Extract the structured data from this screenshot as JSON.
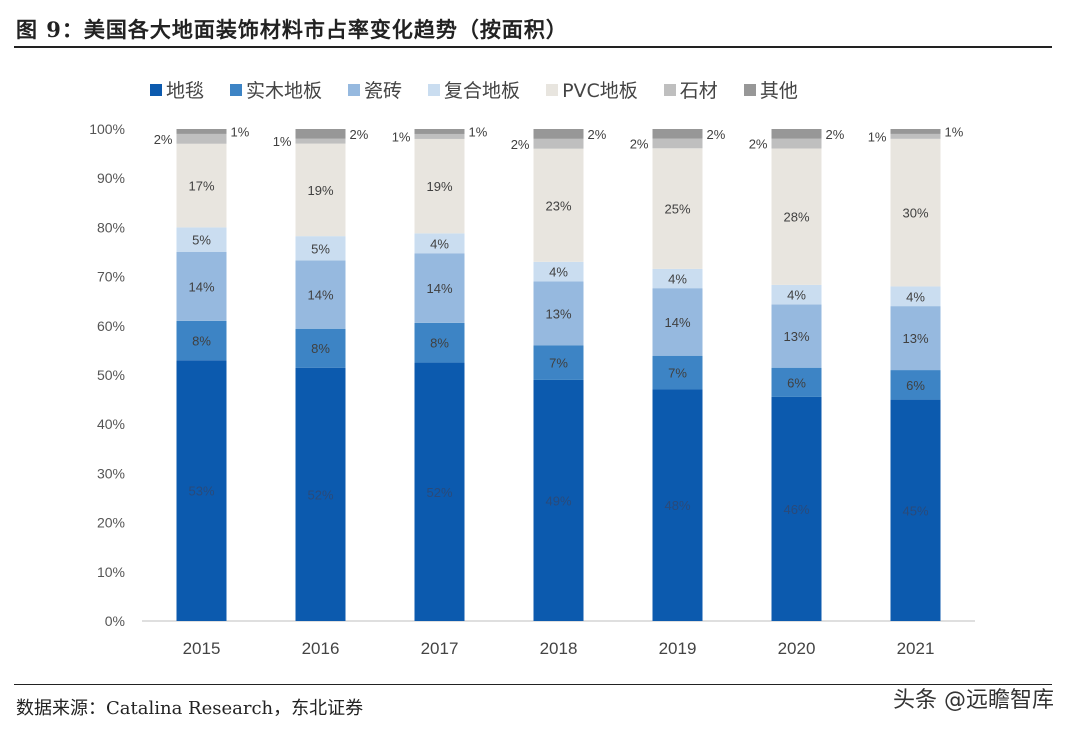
{
  "title": "图 9：美国各大地面装饰材料市占率变化趋势（按面积）",
  "source": "数据来源：Catalina Research，东北证券",
  "watermark": "头条 @远瞻智库",
  "chart_data": {
    "type": "stacked-bar",
    "categories": [
      "2015",
      "2016",
      "2017",
      "2018",
      "2019",
      "2020",
      "2021"
    ],
    "ylim": [
      0,
      100
    ],
    "yticks": [
      "0%",
      "10%",
      "20%",
      "30%",
      "40%",
      "50%",
      "60%",
      "70%",
      "80%",
      "90%",
      "100%"
    ],
    "grid": false,
    "legend_position": "top",
    "series": [
      {
        "name": "地毯",
        "color": "#0C5AAE",
        "values": [
          53,
          52,
          52,
          49,
          48,
          46,
          45
        ]
      },
      {
        "name": "实木地板",
        "color": "#3D84C5",
        "values": [
          8,
          8,
          8,
          7,
          7,
          6,
          6
        ]
      },
      {
        "name": "瓷砖",
        "color": "#96B9DF",
        "values": [
          14,
          14,
          14,
          13,
          14,
          13,
          13
        ]
      },
      {
        "name": "复合地板",
        "color": "#CADDF0",
        "values": [
          5,
          5,
          4,
          4,
          4,
          4,
          4
        ]
      },
      {
        "name": "PVC地板",
        "color": "#E8E5DF",
        "values": [
          17,
          19,
          19,
          23,
          25,
          28,
          30
        ]
      },
      {
        "name": "石材",
        "color": "#BFBFBF",
        "values": [
          2,
          1,
          1,
          2,
          2,
          2,
          1
        ]
      },
      {
        "name": "其他",
        "color": "#979797",
        "values": [
          1,
          2,
          1,
          2,
          2,
          2,
          1
        ]
      }
    ]
  }
}
